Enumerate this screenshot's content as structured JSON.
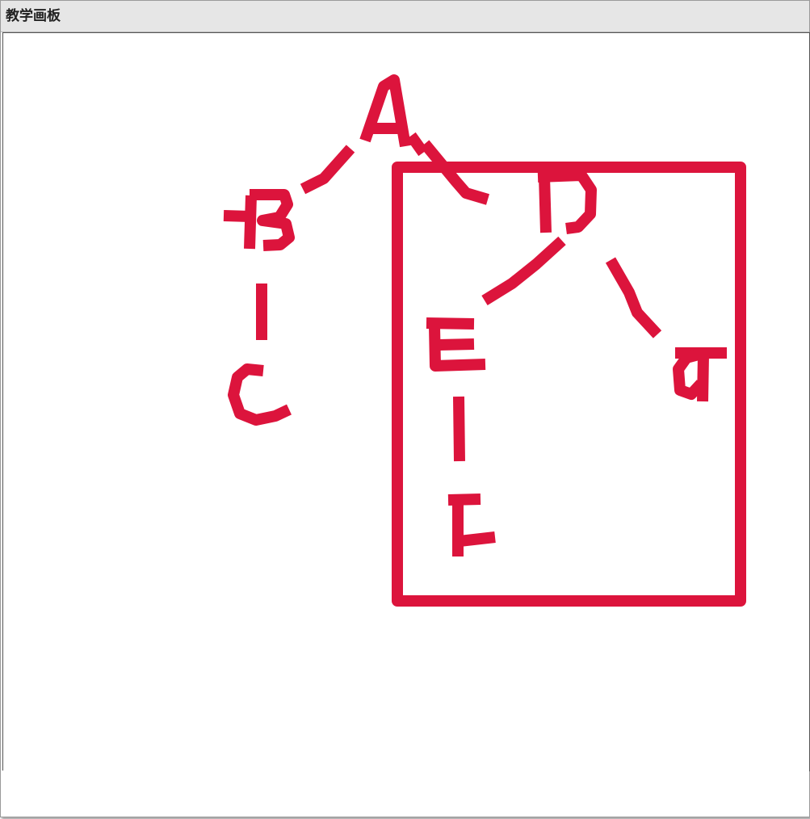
{
  "window": {
    "title": "教学画板"
  },
  "canvas": {
    "stroke_color": "#dc143c",
    "drawing": "tree-diagram",
    "node_labels": [
      "A",
      "B",
      "C",
      "D",
      "E",
      "F",
      "G"
    ]
  },
  "status": {
    "text": ""
  }
}
